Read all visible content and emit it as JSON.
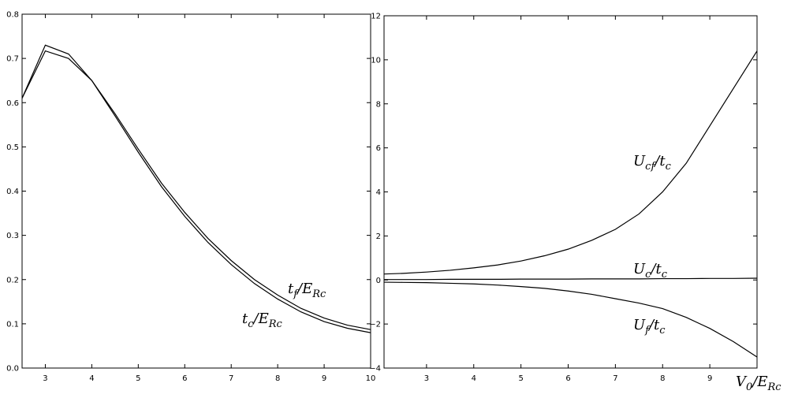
{
  "chart_data": [
    {
      "type": "line",
      "xlim": [
        2.5,
        10
      ],
      "ylim": [
        0,
        0.8
      ],
      "xticks": [
        3,
        4,
        5,
        6,
        7,
        8,
        9,
        10
      ],
      "yticks": [
        {
          "value": 0,
          "label": "0.0"
        },
        0.1,
        0.2,
        0.3,
        0.4,
        0.5,
        0.6,
        0.7,
        0.8
      ],
      "x": [
        2.5,
        3,
        3.5,
        4,
        4.5,
        5,
        5.5,
        6,
        6.5,
        7,
        7.5,
        8,
        8.5,
        9,
        9.5,
        10
      ],
      "series": [
        {
          "color": "#000000",
          "values": [
            0.61,
            0.717,
            0.7,
            0.65,
            0.575,
            0.495,
            0.418,
            0.352,
            0.293,
            0.243,
            0.2,
            0.165,
            0.135,
            0.113,
            0.097,
            0.087
          ]
        },
        {
          "color": "#000000",
          "values": [
            0.61,
            0.73,
            0.71,
            0.65,
            0.57,
            0.488,
            0.41,
            0.343,
            0.284,
            0.234,
            0.191,
            0.156,
            0.127,
            0.105,
            0.09,
            0.08
          ]
        }
      ],
      "annotations": [
        [
          [
            "t",
            "f"
          ],
          [
            "/E",
            "Rc"
          ]
        ],
        [
          [
            "t",
            "c"
          ],
          [
            "/E",
            "Rc"
          ]
        ]
      ]
    },
    {
      "type": "line",
      "xlim": [
        2.1,
        10
      ],
      "ylim": [
        -4,
        12
      ],
      "xticks": [
        3,
        4,
        5,
        6,
        7,
        8,
        9
      ],
      "yticks": [
        {
          "value": -4,
          "label": "−4"
        },
        {
          "value": -2,
          "label": "−2"
        },
        0,
        2,
        4,
        6,
        8,
        10,
        12
      ],
      "x": [
        2.1,
        2.5,
        3,
        3.5,
        4,
        4.5,
        5,
        5.5,
        6,
        6.5,
        7,
        7.5,
        8,
        8.5,
        9,
        9.5,
        10
      ],
      "series": [
        {
          "color": "#000000",
          "values": [
            0.27,
            0.3,
            0.36,
            0.44,
            0.55,
            0.68,
            0.86,
            1.1,
            1.4,
            1.8,
            2.3,
            3.0,
            4.0,
            5.3,
            7.0,
            8.7,
            10.4
          ]
        },
        {
          "color": "#000000",
          "values": [
            0.02,
            0.02,
            0.02,
            0.03,
            0.03,
            0.03,
            0.04,
            0.04,
            0.04,
            0.05,
            0.05,
            0.05,
            0.06,
            0.06,
            0.07,
            0.07,
            0.08
          ]
        },
        {
          "color": "#000000",
          "values": [
            -0.1,
            -0.11,
            -0.12,
            -0.15,
            -0.18,
            -0.23,
            -0.3,
            -0.38,
            -0.5,
            -0.65,
            -0.85,
            -1.05,
            -1.3,
            -1.7,
            -2.2,
            -2.8,
            -3.5
          ]
        }
      ],
      "annotations": [
        [
          [
            "U",
            "cf"
          ],
          [
            "/t",
            "c"
          ]
        ],
        [
          [
            "U",
            "c"
          ],
          [
            "/t",
            "c"
          ]
        ],
        [
          [
            "U",
            "f"
          ],
          [
            "/t",
            "c"
          ]
        ]
      ],
      "xlabel": [
        [
          "V",
          "0"
        ],
        [
          "/E",
          "Rc"
        ]
      ]
    }
  ]
}
